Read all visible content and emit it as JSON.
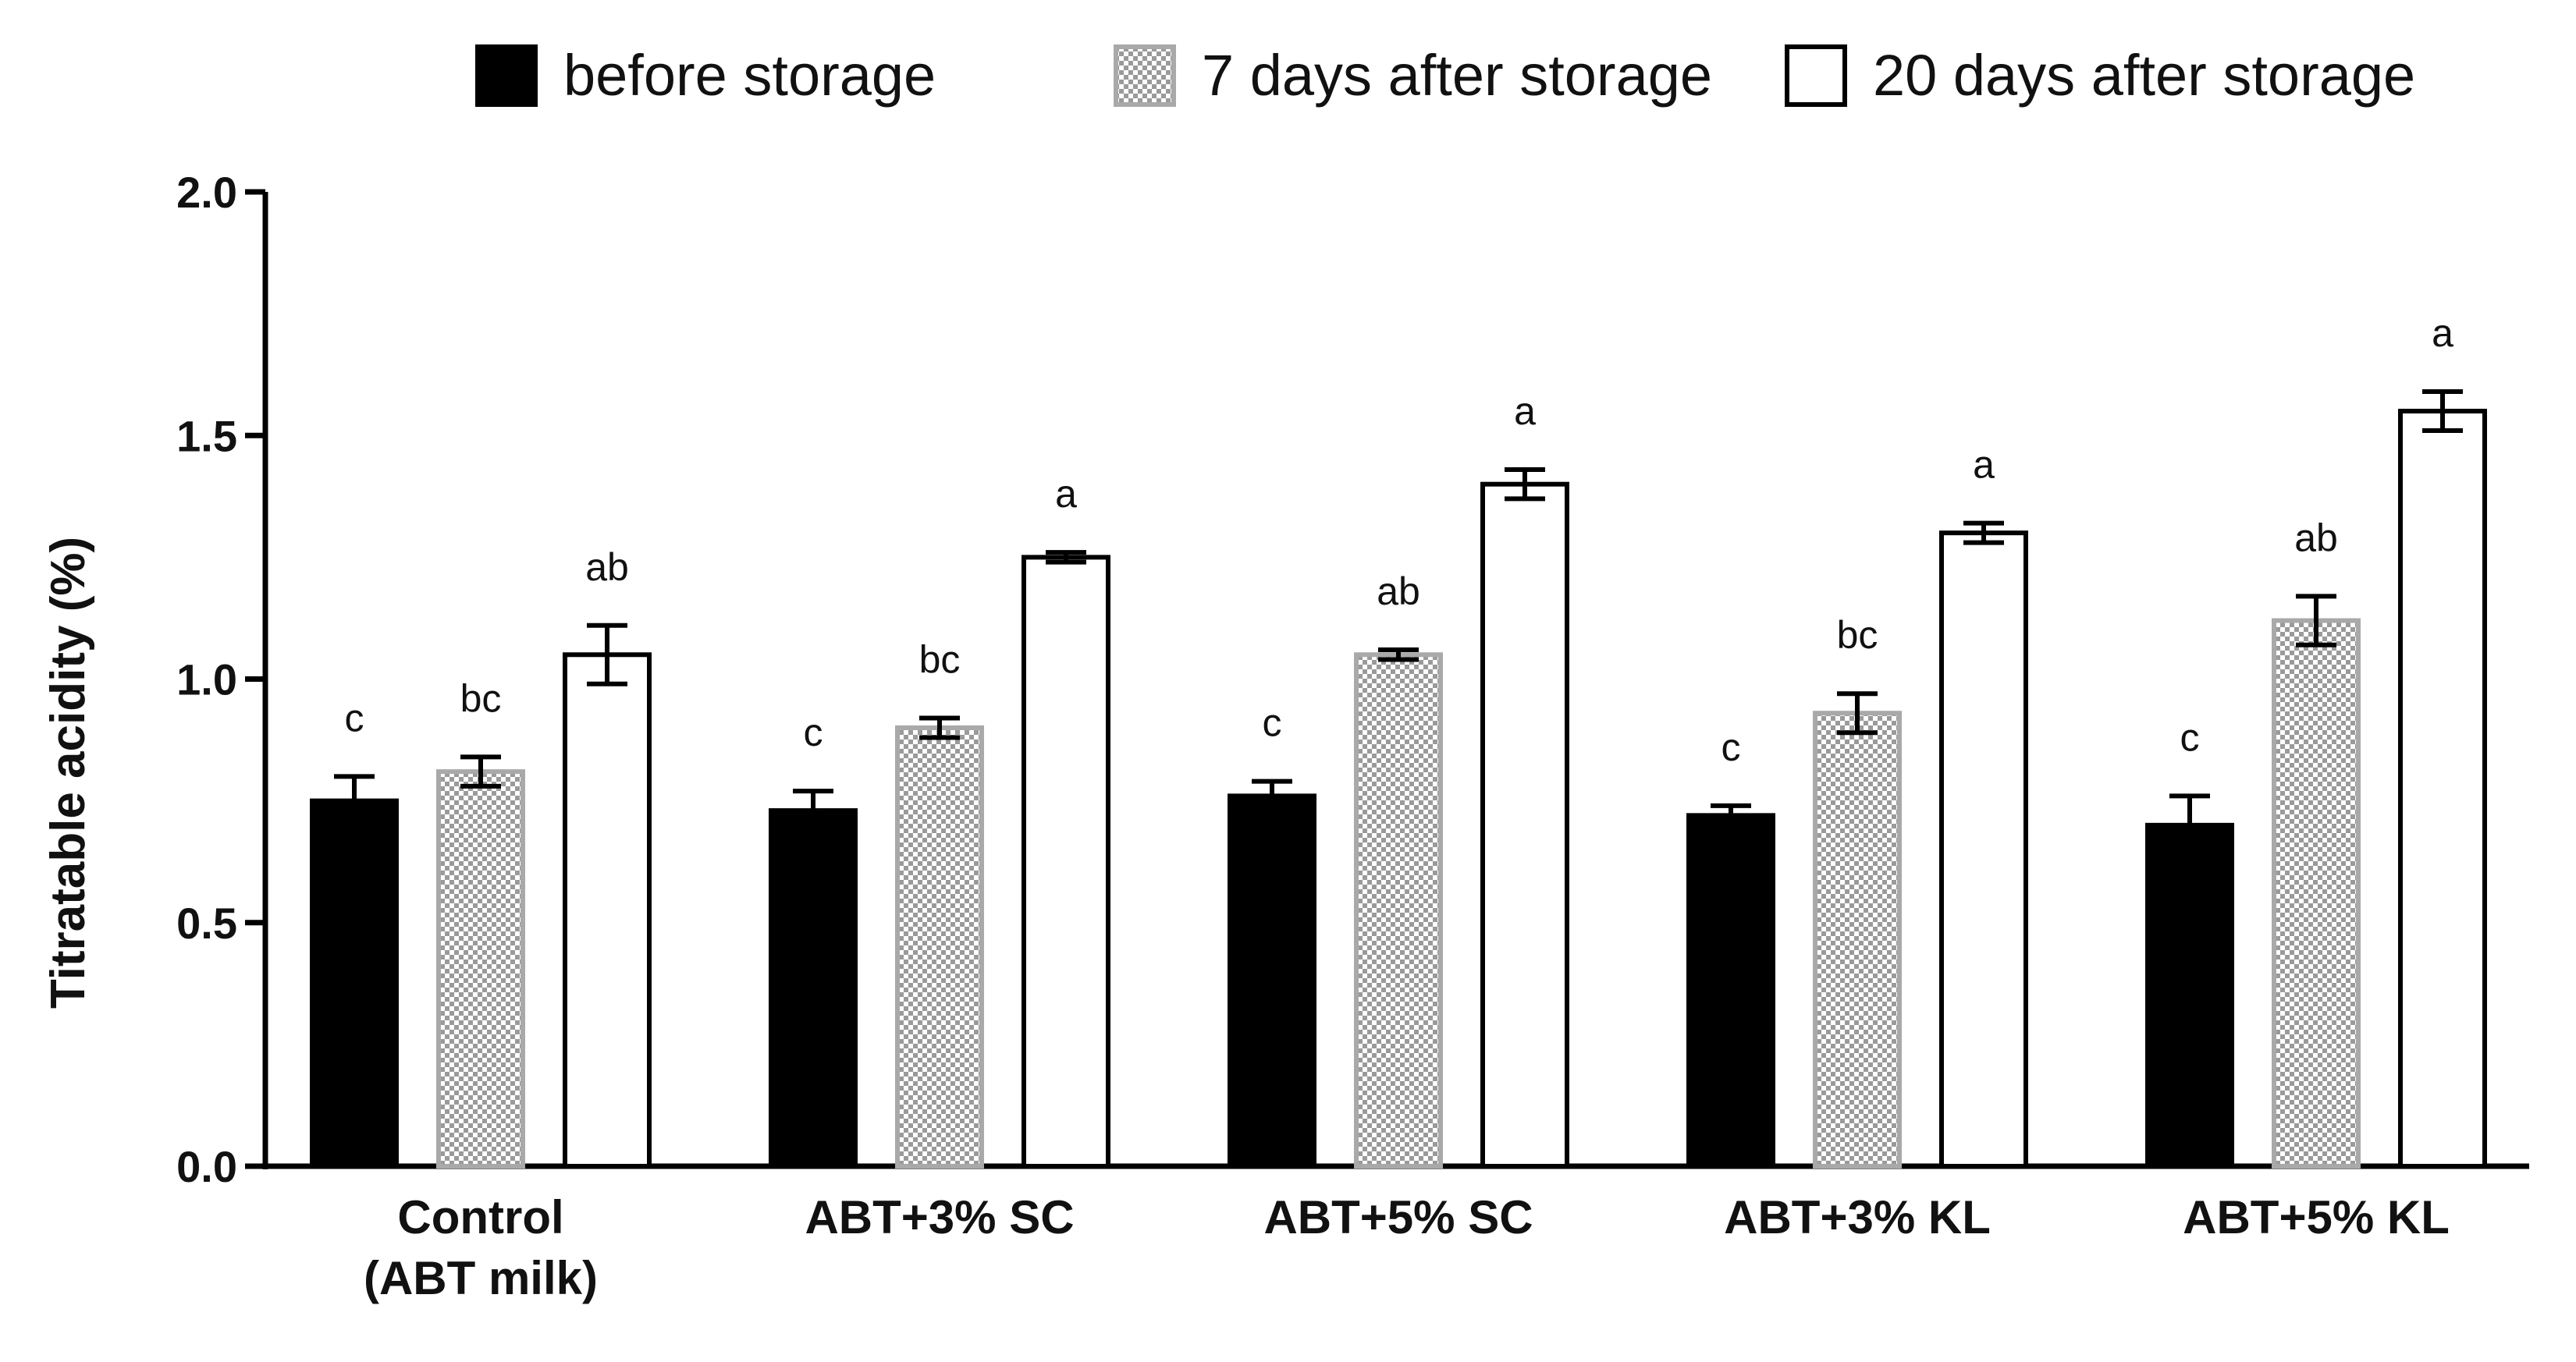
{
  "chart_data": {
    "type": "bar",
    "title": "",
    "xlabel": "",
    "ylabel": "Titratable acidity (%)",
    "ylim": [
      0,
      2.0
    ],
    "yticks": [
      "0.0",
      "0.5",
      "1.0",
      "1.5",
      "2.0"
    ],
    "ytick_values": [
      0,
      0.5,
      1.0,
      1.5,
      2.0
    ],
    "grid": false,
    "legend_position": "top",
    "categories": [
      [
        "Control",
        "(ABT milk)"
      ],
      [
        "ABT+3% SC"
      ],
      [
        "ABT+5% SC"
      ],
      [
        "ABT+3% KL"
      ],
      [
        "ABT+5% KL"
      ]
    ],
    "series": [
      {
        "name": "before storage",
        "style": "solid",
        "color": "#000000",
        "values": [
          0.75,
          0.73,
          0.76,
          0.72,
          0.7
        ],
        "errors": [
          0.05,
          0.04,
          0.03,
          0.02,
          0.06
        ],
        "letters": [
          "c",
          "c",
          "c",
          "c",
          "c"
        ]
      },
      {
        "name": "7 days after storage",
        "style": "checkered",
        "color": "#a9a9a9",
        "values": [
          0.81,
          0.9,
          1.05,
          0.93,
          1.12
        ],
        "errors": [
          0.03,
          0.02,
          0.01,
          0.04,
          0.05
        ],
        "letters": [
          "bc",
          "bc",
          "ab",
          "bc",
          "ab"
        ]
      },
      {
        "name": "20 days after storage",
        "style": "open",
        "color": "#ffffff",
        "values": [
          1.05,
          1.25,
          1.4,
          1.3,
          1.55
        ],
        "errors": [
          0.06,
          0.01,
          0.03,
          0.02,
          0.04
        ],
        "letters": [
          "ab",
          "a",
          "a",
          "a",
          "a"
        ]
      }
    ]
  }
}
